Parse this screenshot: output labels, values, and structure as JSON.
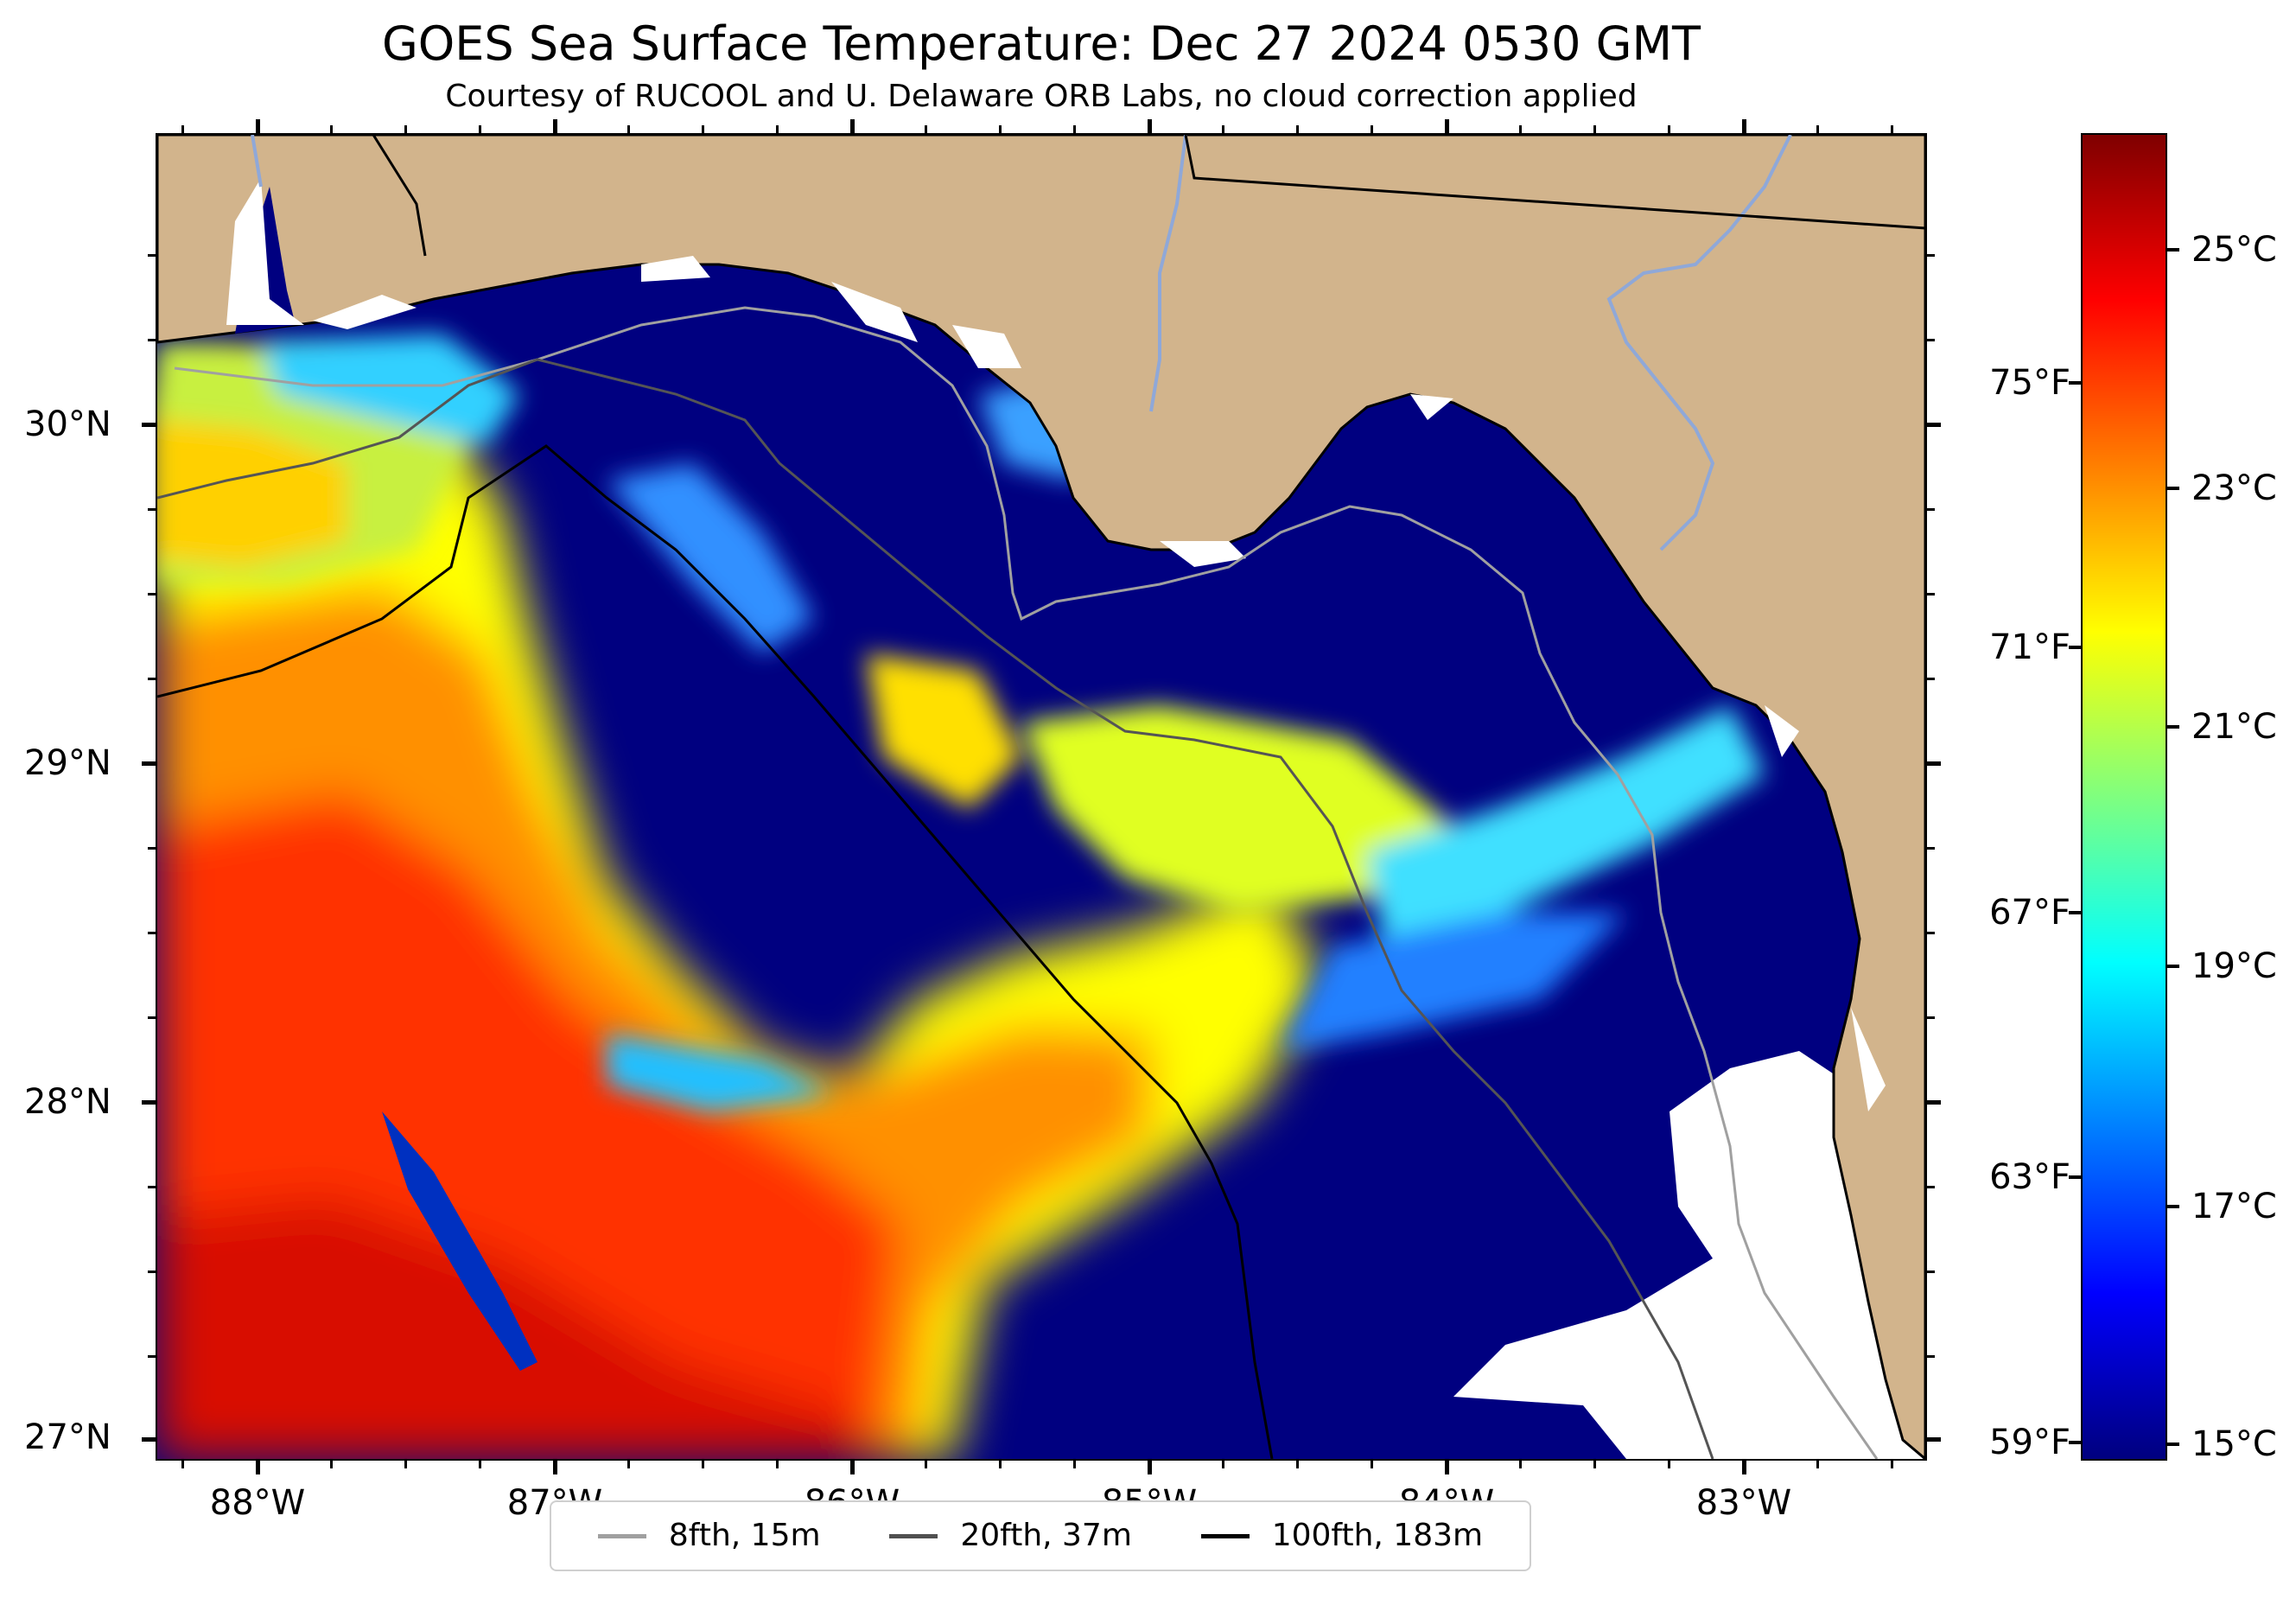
{
  "title": "GOES Sea Surface Temperature: Dec 27 2024 0530 GMT",
  "subtitle": "Courtesy of RUCOOL and U. Delaware ORB Labs, no cloud correction applied",
  "map": {
    "latitude_labels": [
      "30°N",
      "29°N",
      "28°N",
      "27°N"
    ],
    "longitude_labels": [
      "88°W",
      "87°W",
      "86°W",
      "85°W",
      "84°W",
      "83°W"
    ],
    "land_color": "#d2b48c",
    "no_data_color": "#ffffff",
    "colormap": "jet"
  },
  "colorbar": {
    "celsius_labels": [
      "25°C",
      "23°C",
      "21°C",
      "19°C",
      "17°C",
      "15°C"
    ],
    "fahrenheit_labels": [
      "75°F",
      "71°F",
      "67°F",
      "63°F",
      "59°F"
    ],
    "celsius_range": [
      14.8,
      26.0
    ]
  },
  "legend": {
    "items": [
      {
        "label": "8fth, 15m",
        "color": "#a0a0a0"
      },
      {
        "label": "20fth, 37m",
        "color": "#505050"
      },
      {
        "label": "100fth, 183m",
        "color": "#000000"
      }
    ]
  }
}
